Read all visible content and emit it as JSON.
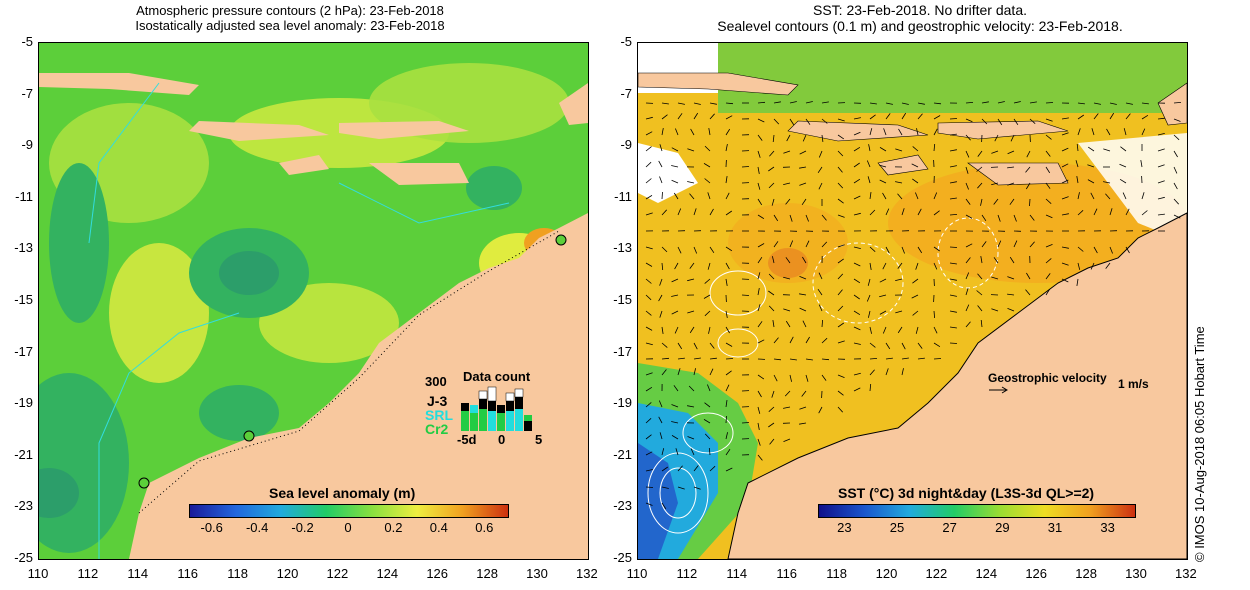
{
  "left_panel": {
    "title_line1": "Atmospheric pressure contours (2 hPa): 23-Feb-2018",
    "title_line2": "Isostatically adjusted sea level anomaly: 23-Feb-2018",
    "colorbar": {
      "title": "Sea level anomaly (m)",
      "ticks": [
        "-0.6",
        "-0.4",
        "-0.2",
        "0",
        "0.2",
        "0.4",
        "0.6"
      ],
      "colors": [
        "#1a1a9a",
        "#2266dd",
        "#22aadd",
        "#22cc66",
        "#88e040",
        "#eeee40",
        "#f0a020",
        "#cc3010"
      ]
    },
    "data_count": {
      "title": "Data count",
      "max_label": "300",
      "missions": [
        "J-3",
        "SRL",
        "Cr2"
      ],
      "mission_colors": [
        "#000000",
        "#22dddd",
        "#22cc44"
      ],
      "xticks": [
        "-5d",
        "0",
        "5"
      ]
    }
  },
  "right_panel": {
    "title_line1": "SST: 23-Feb-2018. No drifter data.",
    "title_line2": "Sealevel contours (0.1 m) and geostrophic velocity: 23-Feb-2018.",
    "velocity_key": "Geostrophic velocity",
    "velocity_unit": "1 m/s",
    "colorbar": {
      "title": "SST (°C) 3d night&day (L3S-3d QL>=2)",
      "ticks": [
        "23",
        "25",
        "27",
        "29",
        "31",
        "33"
      ],
      "colors": [
        "#10108a",
        "#1a55cc",
        "#22aadd",
        "#22cc66",
        "#99dd33",
        "#eedd22",
        "#f0a020",
        "#cc3010"
      ]
    },
    "side_label": "© IMOS 10-Aug-2018 06:05 Hobart Time"
  },
  "axes": {
    "y_ticks": [
      "-5",
      "-7",
      "-9",
      "-11",
      "-13",
      "-15",
      "-17",
      "-19",
      "-21",
      "-23",
      "-25"
    ],
    "x_ticks": [
      "110",
      "112",
      "114",
      "116",
      "118",
      "120",
      "122",
      "124",
      "126",
      "128",
      "130",
      "132"
    ]
  },
  "colors": {
    "land": "#f8c89e",
    "sla_base": "#5ccf3a",
    "sst_base": "#f0c020"
  }
}
